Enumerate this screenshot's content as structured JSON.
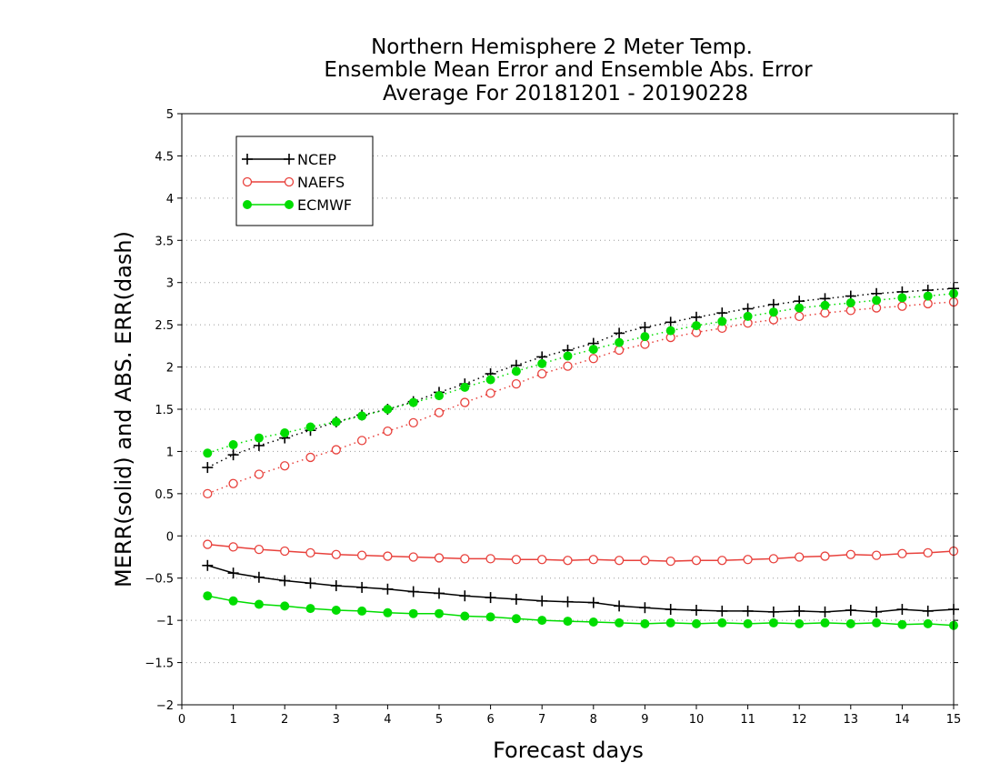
{
  "chart_data": {
    "type": "line",
    "title_lines": [
      "Northern Hemisphere 2 Meter Temp.",
      "Ensemble Mean Error and Ensemble Abs. Error",
      "Average For 20181201 - 20190228"
    ],
    "xlabel": "Forecast days",
    "ylabel": "MERR(solid) and ABS. ERR(dash)",
    "xlim": [
      0,
      15
    ],
    "ylim": [
      -2,
      5
    ],
    "x_ticks": [
      0,
      1,
      2,
      3,
      4,
      5,
      6,
      7,
      8,
      9,
      10,
      11,
      12,
      13,
      14,
      15
    ],
    "y_ticks": [
      -2,
      -1.5,
      -1,
      -0.5,
      0,
      0.5,
      1,
      1.5,
      2,
      2.5,
      3,
      3.5,
      4,
      4.5,
      5
    ],
    "grid": "horizontal dotted",
    "legend_position": "top-left",
    "x": [
      0.5,
      1,
      1.5,
      2,
      2.5,
      3,
      3.5,
      4,
      4.5,
      5,
      5.5,
      6,
      6.5,
      7,
      7.5,
      8,
      8.5,
      9,
      9.5,
      10,
      10.5,
      11,
      11.5,
      12,
      12.5,
      13,
      13.5,
      14,
      14.5,
      15
    ],
    "series": [
      {
        "name": "NCEP",
        "color": "#000000",
        "marker": "plus",
        "merr": [
          -0.35,
          -0.44,
          -0.49,
          -0.53,
          -0.56,
          -0.59,
          -0.61,
          -0.63,
          -0.66,
          -0.68,
          -0.71,
          -0.73,
          -0.75,
          -0.77,
          -0.78,
          -0.79,
          -0.83,
          -0.85,
          -0.87,
          -0.88,
          -0.89,
          -0.89,
          -0.9,
          -0.89,
          -0.9,
          -0.88,
          -0.9,
          -0.87,
          -0.89,
          -0.87
        ],
        "abs_err": [
          0.81,
          0.96,
          1.07,
          1.16,
          1.25,
          1.35,
          1.43,
          1.5,
          1.59,
          1.7,
          1.8,
          1.92,
          2.02,
          2.12,
          2.2,
          2.28,
          2.4,
          2.47,
          2.53,
          2.59,
          2.64,
          2.69,
          2.74,
          2.78,
          2.81,
          2.84,
          2.87,
          2.89,
          2.91,
          2.93
        ]
      },
      {
        "name": "NAEFS",
        "color": "#e8413c",
        "marker": "open-circle",
        "merr": [
          -0.1,
          -0.13,
          -0.16,
          -0.18,
          -0.2,
          -0.22,
          -0.23,
          -0.24,
          -0.25,
          -0.26,
          -0.27,
          -0.27,
          -0.28,
          -0.28,
          -0.29,
          -0.28,
          -0.29,
          -0.29,
          -0.3,
          -0.29,
          -0.29,
          -0.28,
          -0.27,
          -0.25,
          -0.24,
          -0.22,
          -0.23,
          -0.21,
          -0.2,
          -0.18
        ],
        "abs_err": [
          0.5,
          0.62,
          0.73,
          0.83,
          0.93,
          1.02,
          1.13,
          1.24,
          1.34,
          1.46,
          1.58,
          1.69,
          1.8,
          1.92,
          2.01,
          2.1,
          2.2,
          2.27,
          2.35,
          2.41,
          2.46,
          2.52,
          2.56,
          2.6,
          2.64,
          2.67,
          2.7,
          2.72,
          2.75,
          2.77
        ]
      },
      {
        "name": "ECMWF",
        "color": "#00dd00",
        "marker": "filled-circle",
        "merr": [
          -0.71,
          -0.77,
          -0.81,
          -0.83,
          -0.86,
          -0.88,
          -0.89,
          -0.91,
          -0.92,
          -0.92,
          -0.95,
          -0.96,
          -0.98,
          -1.0,
          -1.01,
          -1.02,
          -1.03,
          -1.04,
          -1.03,
          -1.04,
          -1.03,
          -1.04,
          -1.03,
          -1.04,
          -1.03,
          -1.04,
          -1.03,
          -1.05,
          -1.04,
          -1.06
        ],
        "abs_err": [
          0.98,
          1.08,
          1.16,
          1.22,
          1.29,
          1.35,
          1.42,
          1.5,
          1.58,
          1.66,
          1.76,
          1.85,
          1.95,
          2.04,
          2.13,
          2.21,
          2.29,
          2.36,
          2.43,
          2.49,
          2.54,
          2.6,
          2.65,
          2.7,
          2.73,
          2.76,
          2.79,
          2.82,
          2.84,
          2.87
        ]
      }
    ]
  }
}
